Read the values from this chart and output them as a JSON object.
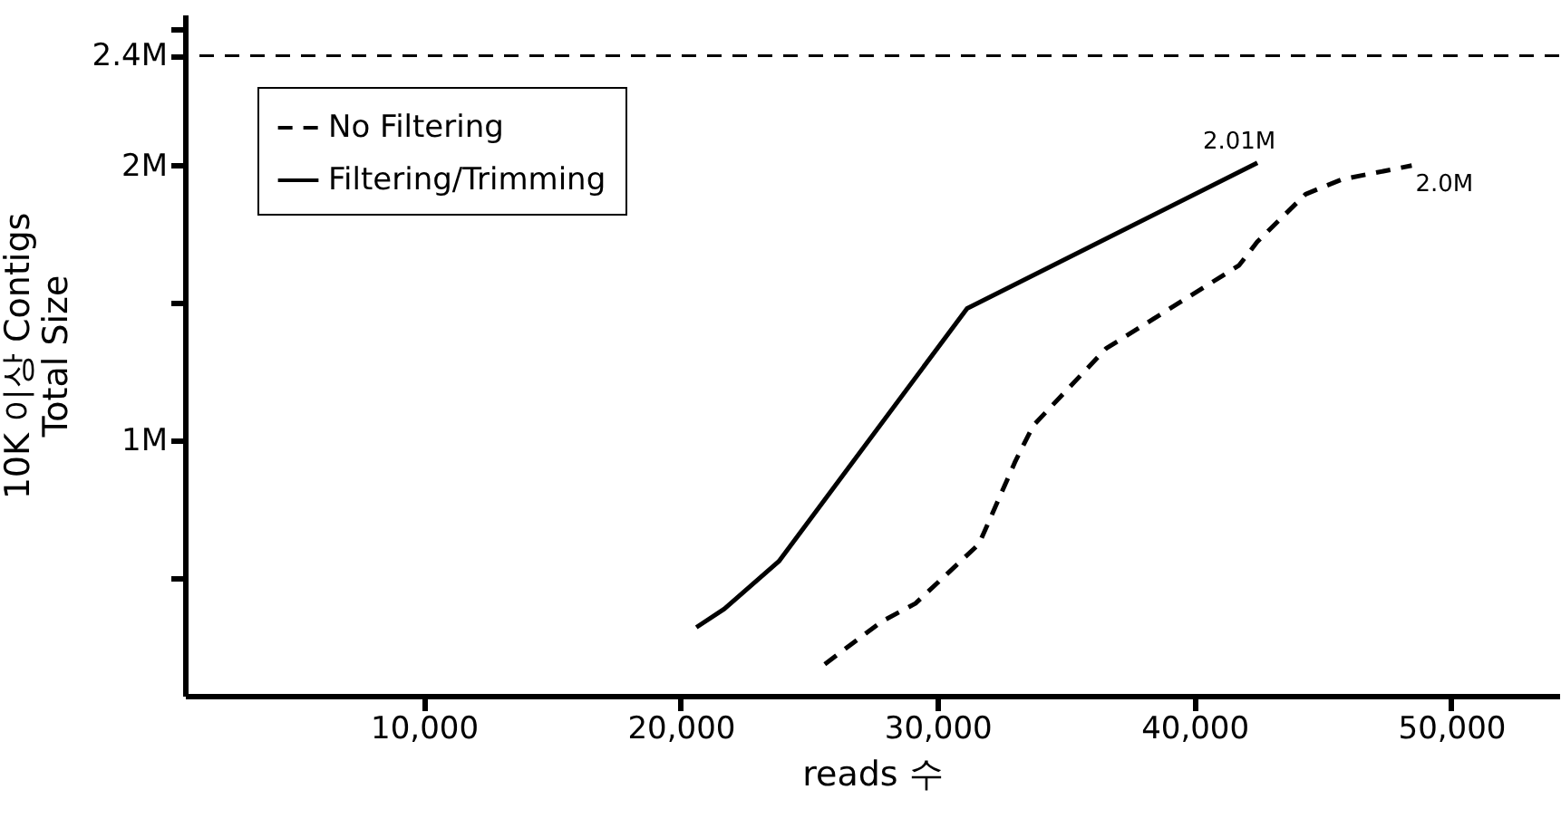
{
  "chart_data": {
    "type": "line",
    "xlabel": "reads 수",
    "ylabel": "10K 이상 Contigs\nTotal Size",
    "xlim": [
      700,
      54200
    ],
    "ylim": [
      0.07,
      2.55
    ],
    "xticks": [
      {
        "value": 10000,
        "label": "10,000"
      },
      {
        "value": 20000,
        "label": "20,000"
      },
      {
        "value": 30000,
        "label": "30,000"
      },
      {
        "value": 40000,
        "label": "40,000"
      },
      {
        "value": 50000,
        "label": "50,000"
      }
    ],
    "yticks": [
      {
        "value": 0.5,
        "label": null
      },
      {
        "value": 1,
        "label": "1M"
      },
      {
        "value": 1.5,
        "label": null
      },
      {
        "value": 2,
        "label": "2M"
      },
      {
        "value": 2.4,
        "label": "2.4M"
      },
      {
        "value": 2.5,
        "label": null
      }
    ],
    "grid": false,
    "legend": "top left",
    "series": [
      {
        "name": "No Filtering",
        "color": "#000000",
        "line_style": "dashed",
        "x": [
          25610,
          27840,
          29140,
          31610,
          33030,
          33730,
          36560,
          41740,
          42450,
          44330,
          45750,
          48460
        ],
        "values": [
          0.185,
          0.341,
          0.406,
          0.622,
          0.924,
          1.054,
          1.334,
          1.637,
          1.723,
          1.896,
          1.95,
          2.0
        ]
      },
      {
        "name": "Filtering/Trimming",
        "color": "#000000",
        "line_style": "solid",
        "x": [
          20610,
          21700,
          23820,
          31150,
          42450
        ],
        "values": [
          0.319,
          0.386,
          0.559,
          1.48,
          2.01
        ]
      }
    ],
    "ref_lines": [
      {
        "axis": "y",
        "value": 2.4,
        "line_style": "dashed",
        "color": "#000000"
      }
    ],
    "annotations": [
      {
        "text": "2.01M",
        "x": 42450,
        "y": 2.01
      },
      {
        "text": "2.0M",
        "x": 48460,
        "y": 2.0
      }
    ]
  }
}
